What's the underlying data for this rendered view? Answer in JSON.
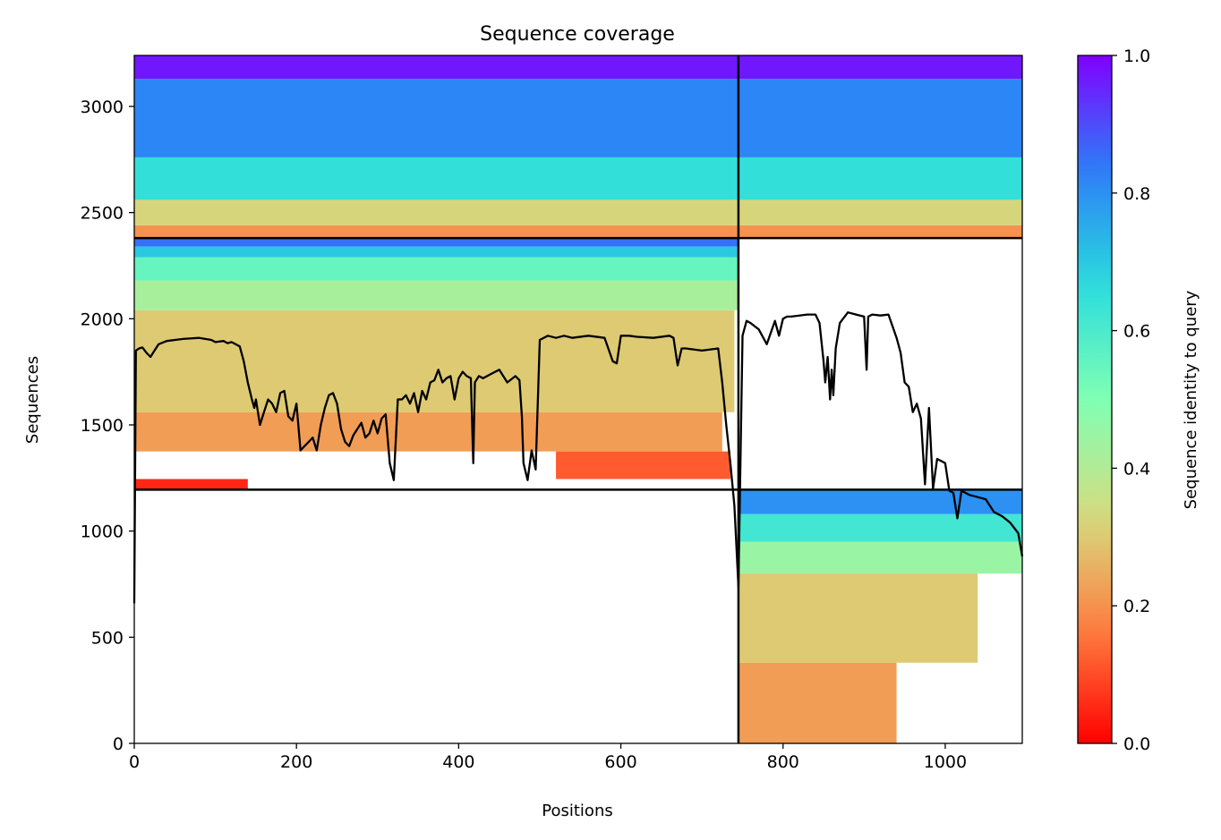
{
  "chart_data": {
    "type": "heatmap",
    "title": "Sequence coverage",
    "xlabel": "Positions",
    "ylabel": "Sequences",
    "xlim": [
      0,
      1095
    ],
    "ylim": [
      0,
      3240
    ],
    "xticks": [
      0,
      200,
      400,
      600,
      800,
      1000
    ],
    "yticks": [
      0,
      500,
      1000,
      1500,
      2000,
      2500,
      3000
    ],
    "colorbar": {
      "label": "Sequence identity to query",
      "range": [
        0,
        1
      ],
      "ticks": [
        0.0,
        0.2,
        0.4,
        0.6,
        0.8,
        1.0
      ],
      "colormap": "rainbow_r"
    },
    "colormap_stops": [
      "#ff0000",
      "#ff7f41",
      "#d4dd80",
      "#80ffb4",
      "#2adcdd",
      "#2c7ef7",
      "#8000ff"
    ],
    "domain_boundaries": {
      "x": 745,
      "y": [
        1195,
        2380
      ]
    },
    "blocks": [
      {
        "name": "chain-1-pairs",
        "x": [
          0,
          745
        ],
        "y": [
          1195,
          2380
        ],
        "bands": [
          {
            "y": [
              1195,
              1245
            ],
            "id": 0.05,
            "x_end": 140
          },
          {
            "y": [
              1245,
              1375
            ],
            "id": 0.12,
            "x_end": 735,
            "x_start": 520
          },
          {
            "y": [
              1375,
              1560
            ],
            "id": 0.22,
            "x_end": 725
          },
          {
            "y": [
              1560,
              2040
            ],
            "id": 0.3,
            "x_end": 740
          },
          {
            "y": [
              2040,
              2180
            ],
            "id": 0.42,
            "x_end": 745
          },
          {
            "y": [
              2180,
              2290
            ],
            "id": 0.55,
            "x_end": 745
          },
          {
            "y": [
              2290,
              2340
            ],
            "id": 0.7,
            "x_end": 745
          },
          {
            "y": [
              2340,
              2380
            ],
            "id": 0.85,
            "x_end": 745
          }
        ]
      },
      {
        "name": "chain-2-pairs",
        "x": [
          745,
          1095
        ],
        "y": [
          0,
          1195
        ],
        "bands": [
          {
            "y": [
              0,
              380
            ],
            "id": 0.22,
            "x_end": 940
          },
          {
            "y": [
              380,
              800
            ],
            "id": 0.3,
            "x_end": 1040
          },
          {
            "y": [
              800,
              950
            ],
            "id": 0.45,
            "x_end": 1095
          },
          {
            "y": [
              950,
              1080
            ],
            "id": 0.62,
            "x_end": 1095
          },
          {
            "y": [
              1080,
              1195
            ],
            "id": 0.8,
            "x_end": 1095
          }
        ]
      },
      {
        "name": "paired-top-left",
        "x": [
          0,
          745
        ],
        "y": [
          2380,
          3240
        ],
        "bands": [
          {
            "y": [
              2380,
              2440
            ],
            "id": 0.2,
            "x_end": 745
          },
          {
            "y": [
              2440,
              2560
            ],
            "id": 0.32,
            "x_end": 745
          },
          {
            "y": [
              2560,
              2760
            ],
            "id": 0.65,
            "x_end": 745
          },
          {
            "y": [
              2760,
              3130
            ],
            "id": 0.82,
            "x_end": 745
          },
          {
            "y": [
              3130,
              3240
            ],
            "id": 0.97,
            "x_end": 745
          }
        ]
      },
      {
        "name": "paired-top-right",
        "x": [
          745,
          1095
        ],
        "y": [
          2380,
          3240
        ],
        "bands": [
          {
            "y": [
              2380,
              2440
            ],
            "id": 0.2,
            "x_end": 1095
          },
          {
            "y": [
              2440,
              2560
            ],
            "id": 0.32,
            "x_end": 1095
          },
          {
            "y": [
              2560,
              2760
            ],
            "id": 0.65,
            "x_end": 1095
          },
          {
            "y": [
              2760,
              3130
            ],
            "id": 0.82,
            "x_end": 1095
          },
          {
            "y": [
              3130,
              3240
            ],
            "id": 0.97,
            "x_end": 1095
          }
        ]
      }
    ],
    "coverage_line": {
      "x": [
        0,
        2,
        4,
        6,
        10,
        15,
        20,
        25,
        30,
        40,
        60,
        80,
        95,
        100,
        110,
        115,
        120,
        130,
        135,
        140,
        145,
        148,
        150,
        155,
        160,
        165,
        170,
        175,
        180,
        185,
        190,
        195,
        200,
        205,
        210,
        215,
        220,
        225,
        230,
        235,
        240,
        245,
        250,
        255,
        260,
        265,
        270,
        275,
        280,
        285,
        290,
        295,
        300,
        305,
        310,
        315,
        320,
        325,
        330,
        335,
        340,
        345,
        350,
        355,
        360,
        365,
        370,
        375,
        380,
        385,
        390,
        395,
        400,
        405,
        410,
        415,
        418,
        420,
        425,
        430,
        440,
        450,
        460,
        470,
        475,
        478,
        480,
        485,
        490,
        495,
        500,
        510,
        520,
        530,
        540,
        560,
        580,
        590,
        595,
        600,
        610,
        620,
        640,
        660,
        665,
        670,
        675,
        680,
        700,
        720,
        725,
        730,
        735,
        740,
        745,
        750,
        755,
        760,
        770,
        780,
        790,
        795,
        800,
        805,
        810,
        830,
        840,
        845,
        850,
        852,
        855,
        858,
        860,
        862,
        865,
        870,
        880,
        890,
        900,
        903,
        905,
        910,
        920,
        930,
        940,
        945,
        950,
        955,
        960,
        965,
        970,
        975,
        980,
        985,
        990,
        1000,
        1005,
        1010,
        1015,
        1020,
        1030,
        1040,
        1050,
        1060,
        1070,
        1080,
        1090,
        1095
      ],
      "y": [
        660,
        1850,
        1855,
        1860,
        1865,
        1840,
        1820,
        1850,
        1880,
        1895,
        1905,
        1910,
        1900,
        1890,
        1895,
        1885,
        1890,
        1870,
        1800,
        1700,
        1620,
        1580,
        1620,
        1500,
        1560,
        1620,
        1600,
        1560,
        1650,
        1660,
        1540,
        1520,
        1600,
        1380,
        1400,
        1420,
        1440,
        1380,
        1500,
        1580,
        1640,
        1650,
        1600,
        1480,
        1420,
        1400,
        1450,
        1480,
        1510,
        1440,
        1460,
        1520,
        1460,
        1530,
        1550,
        1320,
        1240,
        1620,
        1620,
        1640,
        1600,
        1650,
        1560,
        1660,
        1620,
        1700,
        1710,
        1760,
        1700,
        1720,
        1730,
        1620,
        1720,
        1750,
        1730,
        1720,
        1320,
        1700,
        1730,
        1720,
        1740,
        1760,
        1700,
        1730,
        1710,
        1540,
        1320,
        1240,
        1380,
        1290,
        1900,
        1920,
        1910,
        1920,
        1910,
        1920,
        1910,
        1800,
        1790,
        1920,
        1920,
        1915,
        1910,
        1920,
        1910,
        1780,
        1860,
        1860,
        1850,
        1860,
        1700,
        1500,
        1320,
        1120,
        740,
        1920,
        1990,
        1980,
        1950,
        1880,
        1990,
        1920,
        2000,
        2010,
        2010,
        2020,
        2020,
        1980,
        1800,
        1700,
        1820,
        1620,
        1760,
        1640,
        1860,
        1980,
        2030,
        2020,
        2010,
        1760,
        2010,
        2020,
        2015,
        2020,
        1910,
        1840,
        1700,
        1680,
        1560,
        1600,
        1530,
        1220,
        1580,
        1200,
        1340,
        1320,
        1190,
        1180,
        1060,
        1190,
        1170,
        1160,
        1150,
        1090,
        1070,
        1040,
        990,
        880
      ]
    }
  }
}
